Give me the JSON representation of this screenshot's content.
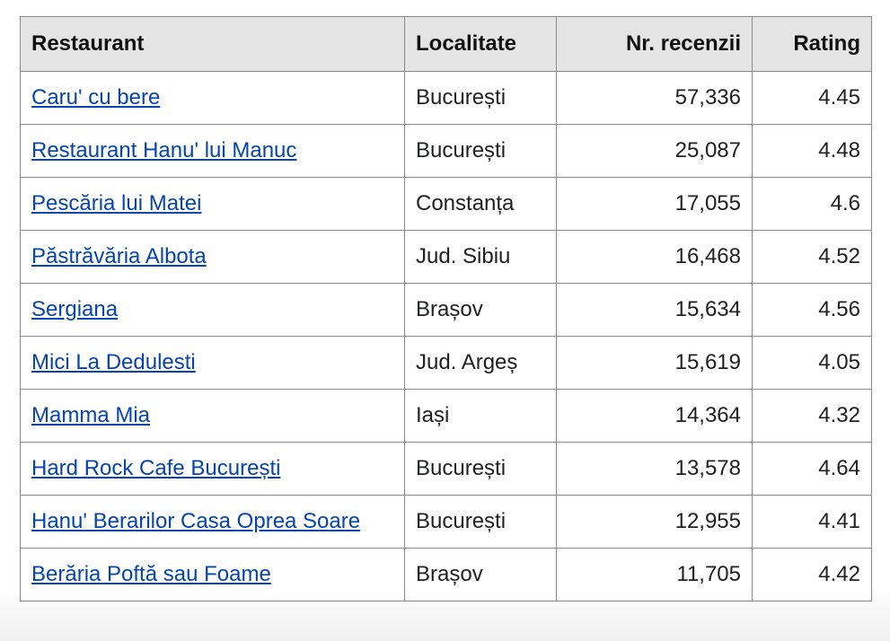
{
  "table": {
    "headers": [
      "Restaurant",
      "Localitate",
      "Nr. recenzii",
      "Rating"
    ],
    "rows": [
      {
        "restaurant": "Caru' cu bere",
        "localitate": "București",
        "recenzii": "57,336",
        "rating": "4.45"
      },
      {
        "restaurant": "Restaurant Hanu' lui Manuc",
        "localitate": "București",
        "recenzii": "25,087",
        "rating": "4.48"
      },
      {
        "restaurant": "Pescăria lui Matei",
        "localitate": "Constanța",
        "recenzii": "17,055",
        "rating": "4.6"
      },
      {
        "restaurant": "Păstrăvăria Albota",
        "localitate": "Jud. Sibiu",
        "recenzii": "16,468",
        "rating": "4.52"
      },
      {
        "restaurant": "Sergiana",
        "localitate": "Brașov",
        "recenzii": "15,634",
        "rating": "4.56"
      },
      {
        "restaurant": "Mici La Dedulesti",
        "localitate": "Jud. Argeș",
        "recenzii": "15,619",
        "rating": "4.05"
      },
      {
        "restaurant": "Mamma Mia",
        "localitate": "Iași",
        "recenzii": "14,364",
        "rating": "4.32"
      },
      {
        "restaurant": "Hard Rock Cafe București",
        "localitate": "București",
        "recenzii": "13,578",
        "rating": "4.64"
      },
      {
        "restaurant": "Hanu' Berarilor Casa Oprea Soare",
        "localitate": "București",
        "recenzii": "12,955",
        "rating": "4.41"
      },
      {
        "restaurant": "Berăria Poftă sau Foame",
        "localitate": "Brașov",
        "recenzii": "11,705",
        "rating": "4.42"
      }
    ]
  },
  "colors": {
    "link": "#0645ad",
    "header_bg": "#e4e4e4",
    "border": "#8a8a8a"
  }
}
